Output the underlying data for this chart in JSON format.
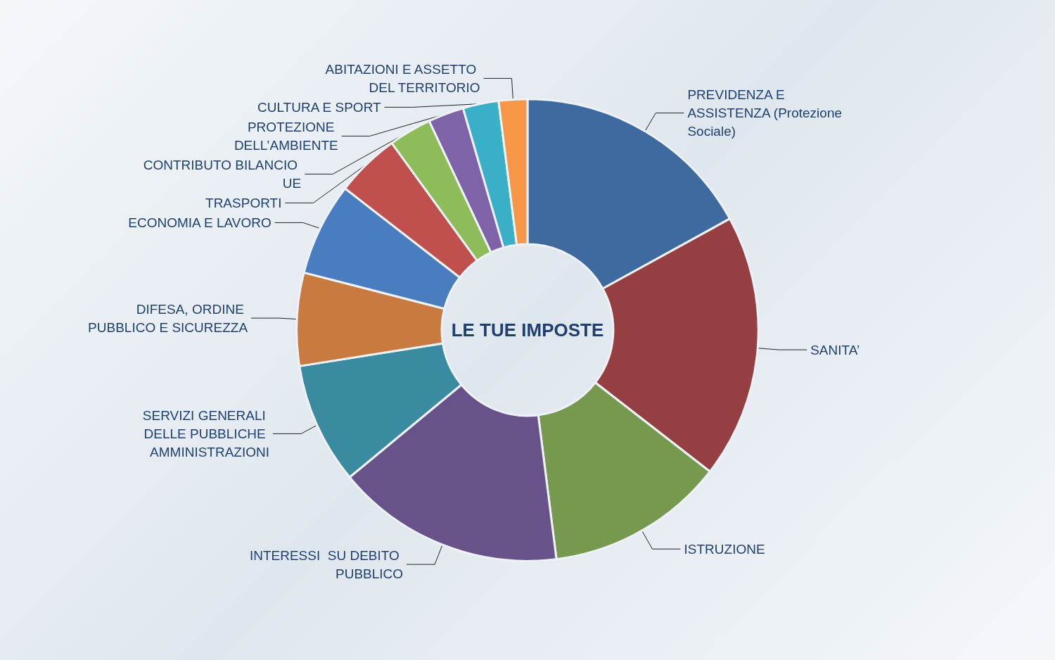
{
  "chart_data": {
    "type": "donut",
    "title": "LE TUE IMPOSTE",
    "categories": [
      "PREVIDENZA E ASSISTENZA (Protezione Sociale)",
      "SANITA’",
      "ISTRUZIONE",
      "INTERESSI  SU DEBITO PUBBLICO",
      "SERVIZI GENERALI DELLE PUBBLICHE AMMINISTRAZIONI",
      "DIFESA, ORDINE PUBBLICO E SICUREZZA",
      "ECONOMIA E LAVORO",
      "TRASPORTI",
      "CONTRIBUTO BILANCIO  UE",
      "PROTEZIONE DELL’AMBIENTE",
      "CULTURA E SPORT",
      "ABITAZIONI E ASSETTO DEL TERRITORIO"
    ],
    "values": [
      17,
      18.5,
      12.5,
      16,
      8.5,
      6.5,
      6.5,
      4.5,
      3,
      2.5,
      2.5,
      2
    ],
    "colors": [
      "#3f6aa0",
      "#963f42",
      "#76994f",
      "#67538a",
      "#3a8aa0",
      "#c87a40",
      "#4a7cc0",
      "#c0504d",
      "#8fbc5a",
      "#7e63a8",
      "#3aafc8",
      "#f79646"
    ],
    "legend": false
  }
}
